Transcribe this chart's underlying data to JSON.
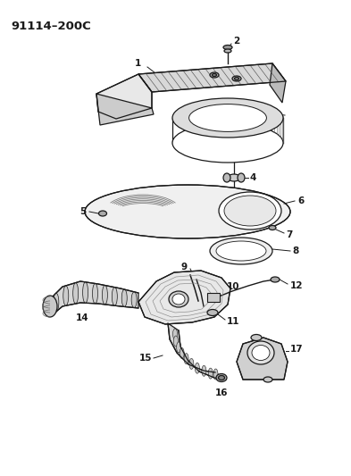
{
  "title_label": "91114–200C",
  "bg_color": "#ffffff",
  "line_color": "#1a1a1a",
  "fig_w": 3.93,
  "fig_h": 5.33,
  "dpi": 100
}
